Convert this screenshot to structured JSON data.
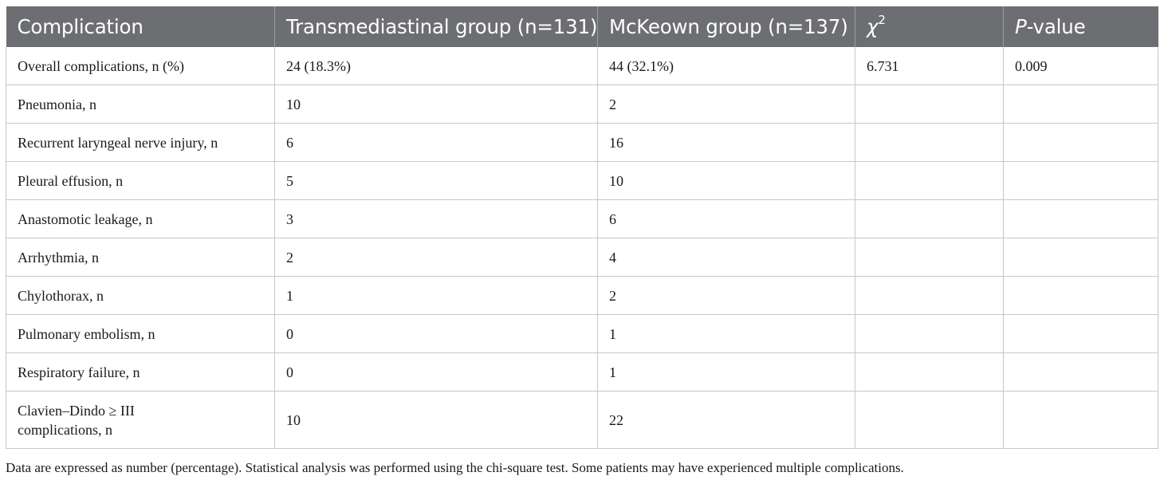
{
  "table": {
    "headers": [
      {
        "text": "Complication"
      },
      {
        "text": "Transmediastinal group (n=131)"
      },
      {
        "text": "McKeown group (n=137)"
      },
      {
        "text": "χ",
        "sup": "2"
      },
      {
        "text_italic": "P",
        "text": "-value"
      }
    ],
    "rows": [
      [
        "Overall complications, n (%)",
        "24 (18.3%)",
        "44 (32.1%)",
        "6.731",
        "0.009"
      ],
      [
        "Pneumonia, n",
        "10",
        "2",
        "",
        ""
      ],
      [
        "Recurrent laryngeal nerve injury, n",
        "6",
        "16",
        "",
        ""
      ],
      [
        "Pleural effusion, n",
        "5",
        "10",
        "",
        ""
      ],
      [
        "Anastomotic leakage, n",
        "3",
        "6",
        "",
        ""
      ],
      [
        "Arrhythmia, n",
        "2",
        "4",
        "",
        ""
      ],
      [
        "Chylothorax, n",
        "1",
        "2",
        "",
        ""
      ],
      [
        "Pulmonary embolism, n",
        "0",
        "1",
        "",
        ""
      ],
      [
        "Respiratory failure, n",
        "0",
        "1",
        "",
        ""
      ],
      [
        "Clavien–Dindo ≥ III complications, n",
        "10",
        "22",
        "",
        ""
      ]
    ]
  },
  "footnote": "Data are expressed as number (percentage). Statistical analysis was performed using the chi-square test. Some patients may have experienced multiple complications."
}
